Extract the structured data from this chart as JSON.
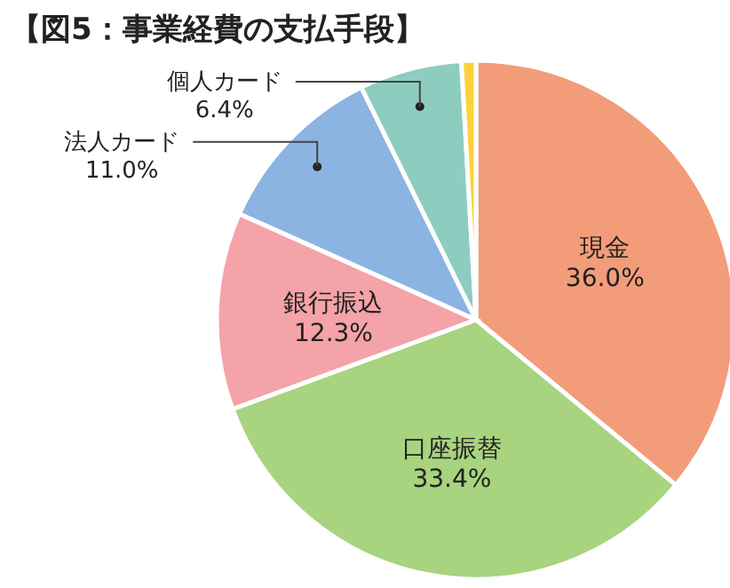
{
  "chart_data": {
    "type": "pie",
    "title": "【図5：事業経費の支払手段】",
    "categories": [
      "現金",
      "口座振替",
      "銀行振込",
      "法人カード",
      "個人カード",
      null
    ],
    "values": [
      36.0,
      33.4,
      12.3,
      11.0,
      6.4,
      0.9
    ],
    "value_labels": [
      "36.0%",
      "33.4%",
      "12.3%",
      "11.0%",
      "6.4%",
      null
    ],
    "colors": [
      "#f29c7a",
      "#a8d37f",
      "#f4a3a8",
      "#8cb4e2",
      "#8dcdbf",
      "#fdd23a"
    ]
  }
}
